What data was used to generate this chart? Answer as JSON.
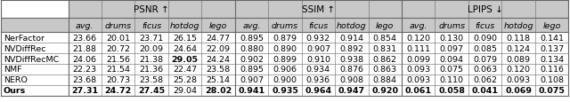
{
  "methods": [
    "NerFactor",
    "NVDiffRec",
    "NVDiffRecMC",
    "NMF",
    "NERO",
    "Ours"
  ],
  "psnr": {
    "avg": [
      23.66,
      21.88,
      24.06,
      22.23,
      23.68,
      27.31
    ],
    "drums": [
      20.01,
      20.72,
      21.56,
      21.54,
      20.73,
      24.72
    ],
    "ficus": [
      23.71,
      20.09,
      21.38,
      21.36,
      23.58,
      27.45
    ],
    "hotdog": [
      26.15,
      24.64,
      29.05,
      22.47,
      25.28,
      29.04
    ],
    "lego": [
      24.77,
      22.09,
      24.24,
      23.58,
      25.14,
      28.02
    ]
  },
  "ssim": {
    "avg": [
      0.895,
      0.88,
      0.902,
      0.895,
      0.907,
      0.941
    ],
    "drums": [
      0.879,
      0.89,
      0.899,
      0.906,
      0.9,
      0.935
    ],
    "ficus": [
      0.932,
      0.907,
      0.91,
      0.934,
      0.936,
      0.964
    ],
    "hotdog": [
      0.914,
      0.892,
      0.938,
      0.876,
      0.908,
      0.947
    ],
    "lego": [
      0.854,
      0.831,
      0.862,
      0.863,
      0.884,
      0.92
    ]
  },
  "lpips": {
    "avg": [
      0.12,
      0.111,
      0.099,
      0.093,
      0.093,
      0.061
    ],
    "drums": [
      0.13,
      0.097,
      0.094,
      0.075,
      0.11,
      0.058
    ],
    "ficus": [
      0.09,
      0.085,
      0.079,
      0.063,
      0.062,
      0.041
    ],
    "hotdog": [
      0.118,
      0.124,
      0.089,
      0.12,
      0.093,
      0.069
    ],
    "lego": [
      0.141,
      0.137,
      0.134,
      0.116,
      0.108,
      0.075
    ]
  },
  "bold_psnr": {
    "avg": [
      false,
      false,
      false,
      false,
      false,
      true
    ],
    "drums": [
      false,
      false,
      false,
      false,
      false,
      true
    ],
    "ficus": [
      false,
      false,
      false,
      false,
      false,
      true
    ],
    "hotdog": [
      false,
      false,
      true,
      false,
      false,
      false
    ],
    "lego": [
      false,
      false,
      false,
      false,
      false,
      true
    ]
  },
  "bold_ssim": {
    "avg": [
      false,
      false,
      false,
      false,
      false,
      true
    ],
    "drums": [
      false,
      false,
      false,
      false,
      false,
      true
    ],
    "ficus": [
      false,
      false,
      false,
      false,
      false,
      true
    ],
    "hotdog": [
      false,
      false,
      false,
      false,
      false,
      true
    ],
    "lego": [
      false,
      false,
      false,
      false,
      false,
      true
    ]
  },
  "bold_lpips": {
    "avg": [
      false,
      false,
      false,
      false,
      false,
      true
    ],
    "drums": [
      false,
      false,
      false,
      false,
      false,
      true
    ],
    "ficus": [
      false,
      false,
      false,
      false,
      false,
      true
    ],
    "hotdog": [
      false,
      false,
      false,
      false,
      false,
      true
    ],
    "lego": [
      false,
      false,
      false,
      false,
      false,
      true
    ]
  },
  "header_bg": "#c8c8c8",
  "border_color": "#666666",
  "text_color": "#000000",
  "font_size": 6.8,
  "header_font_size": 7.5,
  "fig_width": 6.4,
  "fig_height": 1.16
}
